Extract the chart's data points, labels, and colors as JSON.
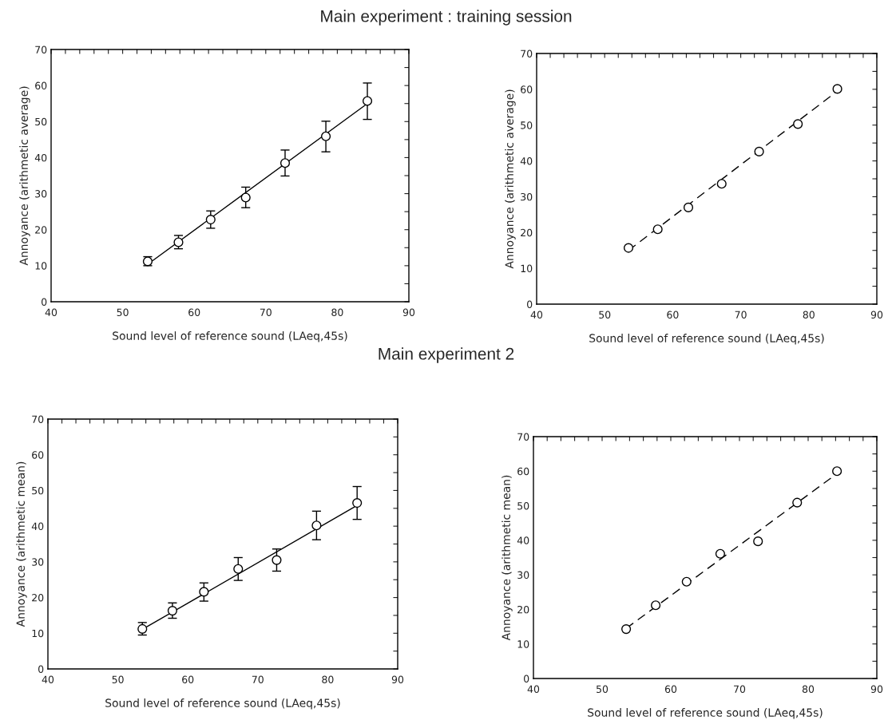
{
  "chart_data": [
    {
      "type": "scatter",
      "title": "Main experiment : training session",
      "xlabel": "Sound level of reference sound (LAeq,45s)",
      "ylabel": "Annoyance (arithmetic average)",
      "marker": "circle",
      "grid": false,
      "xlim": [
        40,
        90
      ],
      "ylim": [
        0,
        70
      ],
      "xticks": [
        40,
        {
          "value": 42,
          "label": null
        },
        {
          "value": 44,
          "label": null
        },
        {
          "value": 46,
          "label": null
        },
        {
          "value": 48,
          "label": null
        },
        50,
        {
          "value": 52,
          "label": null
        },
        {
          "value": 54,
          "label": null
        },
        {
          "value": 56,
          "label": null
        },
        {
          "value": 58,
          "label": null
        },
        60,
        {
          "value": 62,
          "label": null
        },
        {
          "value": 64,
          "label": null
        },
        {
          "value": 66,
          "label": null
        },
        {
          "value": 68,
          "label": null
        },
        70,
        {
          "value": 72,
          "label": null
        },
        {
          "value": 74,
          "label": null
        },
        {
          "value": 76,
          "label": null
        },
        {
          "value": 78,
          "label": null
        },
        80,
        {
          "value": 82,
          "label": null
        },
        {
          "value": 84,
          "label": null
        },
        {
          "value": 86,
          "label": null
        },
        {
          "value": 88,
          "label": null
        },
        90
      ],
      "yticks": [
        0,
        {
          "value": 5,
          "label": null
        },
        10,
        {
          "value": 15,
          "label": null
        },
        20,
        {
          "value": 25,
          "label": null
        },
        30,
        {
          "value": 35,
          "label": null
        },
        40,
        {
          "value": 45,
          "label": null
        },
        50,
        {
          "value": 55,
          "label": null
        },
        60,
        {
          "value": 65,
          "label": null
        },
        70
      ],
      "series": [
        {
          "color": "#000000",
          "x": [
            53.5,
            57.8,
            62.3,
            67.2,
            72.7,
            78.4,
            84.2
          ],
          "values": [
            11.2,
            16.5,
            22.8,
            28.9,
            38.5,
            45.9,
            55.7
          ],
          "errors": [
            [
              10.0,
              12.5
            ],
            [
              14.7,
              18.4
            ],
            [
              20.4,
              25.2
            ],
            [
              26.1,
              31.8
            ],
            [
              34.9,
              42.1
            ],
            [
              41.6,
              50.1
            ],
            [
              50.6,
              60.7
            ]
          ]
        },
        {
          "type": "line",
          "marker": "none",
          "color": "#000000",
          "line_style": "solid",
          "x": [
            53.7,
            84.2
          ],
          "values": [
            10.7,
            55.0
          ]
        }
      ]
    },
    {
      "type": "scatter",
      "xlabel": "Sound level of reference sound (LAeq,45s)",
      "ylabel": "Annoyance (arithmetic average)",
      "marker": "circle",
      "grid": false,
      "xlim": [
        40,
        90
      ],
      "ylim": [
        0,
        70
      ],
      "xticks": [
        40,
        {
          "value": 42,
          "label": null
        },
        {
          "value": 44,
          "label": null
        },
        {
          "value": 46,
          "label": null
        },
        {
          "value": 48,
          "label": null
        },
        50,
        {
          "value": 52,
          "label": null
        },
        {
          "value": 54,
          "label": null
        },
        {
          "value": 56,
          "label": null
        },
        {
          "value": 58,
          "label": null
        },
        60,
        {
          "value": 62,
          "label": null
        },
        {
          "value": 64,
          "label": null
        },
        {
          "value": 66,
          "label": null
        },
        {
          "value": 68,
          "label": null
        },
        70,
        {
          "value": 72,
          "label": null
        },
        {
          "value": 74,
          "label": null
        },
        {
          "value": 76,
          "label": null
        },
        {
          "value": 78,
          "label": null
        },
        80,
        {
          "value": 82,
          "label": null
        },
        {
          "value": 84,
          "label": null
        },
        {
          "value": 86,
          "label": null
        },
        {
          "value": 88,
          "label": null
        },
        90
      ],
      "yticks": [
        0,
        {
          "value": 5,
          "label": null
        },
        10,
        {
          "value": 15,
          "label": null
        },
        20,
        {
          "value": 25,
          "label": null
        },
        30,
        {
          "value": 35,
          "label": null
        },
        40,
        {
          "value": 45,
          "label": null
        },
        50,
        {
          "value": 55,
          "label": null
        },
        60,
        {
          "value": 65,
          "label": null
        },
        70
      ],
      "series": [
        {
          "color": "#000000",
          "x": [
            53.5,
            57.8,
            62.3,
            67.2,
            72.7,
            78.4,
            84.2
          ],
          "values": [
            15.7,
            20.9,
            27.0,
            33.6,
            42.6,
            50.3,
            60.1
          ]
        },
        {
          "type": "line",
          "marker": "none",
          "color": "#000000",
          "line_style": "dashed",
          "x": [
            53.5,
            84.2
          ],
          "values": [
            15.0,
            59.5
          ]
        }
      ]
    },
    {
      "type": "scatter",
      "title": "Main experiment 2",
      "xlabel": "Sound level of reference sound (LAeq,45s)",
      "ylabel": "Annoyance (arithmetic mean)",
      "marker": "circle",
      "grid": false,
      "xlim": [
        40,
        90
      ],
      "ylim": [
        0,
        70
      ],
      "xticks": [
        40,
        {
          "value": 42,
          "label": null
        },
        {
          "value": 44,
          "label": null
        },
        {
          "value": 46,
          "label": null
        },
        {
          "value": 48,
          "label": null
        },
        50,
        {
          "value": 52,
          "label": null
        },
        {
          "value": 54,
          "label": null
        },
        {
          "value": 56,
          "label": null
        },
        {
          "value": 58,
          "label": null
        },
        60,
        {
          "value": 62,
          "label": null
        },
        {
          "value": 64,
          "label": null
        },
        {
          "value": 66,
          "label": null
        },
        {
          "value": 68,
          "label": null
        },
        70,
        {
          "value": 72,
          "label": null
        },
        {
          "value": 74,
          "label": null
        },
        {
          "value": 76,
          "label": null
        },
        {
          "value": 78,
          "label": null
        },
        80,
        {
          "value": 82,
          "label": null
        },
        {
          "value": 84,
          "label": null
        },
        {
          "value": 86,
          "label": null
        },
        {
          "value": 88,
          "label": null
        },
        90
      ],
      "yticks": [
        0,
        {
          "value": 5,
          "label": null
        },
        10,
        {
          "value": 15,
          "label": null
        },
        20,
        {
          "value": 25,
          "label": null
        },
        30,
        {
          "value": 35,
          "label": null
        },
        40,
        {
          "value": 45,
          "label": null
        },
        50,
        {
          "value": 55,
          "label": null
        },
        60,
        {
          "value": 65,
          "label": null
        },
        70
      ],
      "series": [
        {
          "color": "#000000",
          "x": [
            53.5,
            57.8,
            62.3,
            67.2,
            72.7,
            78.4,
            84.2
          ],
          "values": [
            11.2,
            16.3,
            21.6,
            28.0,
            30.5,
            40.2,
            46.5
          ],
          "errors": [
            [
              9.5,
              13.0
            ],
            [
              14.2,
              18.5
            ],
            [
              19.0,
              24.1
            ],
            [
              24.8,
              31.2
            ],
            [
              27.4,
              33.6
            ],
            [
              36.2,
              44.2
            ],
            [
              41.9,
              51.1
            ]
          ]
        },
        {
          "type": "line",
          "marker": "none",
          "color": "#000000",
          "line_style": "solid",
          "x": [
            53.7,
            84.2
          ],
          "values": [
            11.3,
            45.8
          ]
        }
      ]
    },
    {
      "type": "scatter",
      "xlabel": "Sound level of reference sound (LAeq,45s)",
      "ylabel": "Annoyance (arithmetic mean)",
      "marker": "circle",
      "grid": false,
      "xlim": [
        40,
        90
      ],
      "ylim": [
        0,
        70
      ],
      "xticks": [
        40,
        {
          "value": 42,
          "label": null
        },
        {
          "value": 44,
          "label": null
        },
        {
          "value": 46,
          "label": null
        },
        {
          "value": 48,
          "label": null
        },
        50,
        {
          "value": 52,
          "label": null
        },
        {
          "value": 54,
          "label": null
        },
        {
          "value": 56,
          "label": null
        },
        {
          "value": 58,
          "label": null
        },
        60,
        {
          "value": 62,
          "label": null
        },
        {
          "value": 64,
          "label": null
        },
        {
          "value": 66,
          "label": null
        },
        {
          "value": 68,
          "label": null
        },
        70,
        {
          "value": 72,
          "label": null
        },
        {
          "value": 74,
          "label": null
        },
        {
          "value": 76,
          "label": null
        },
        {
          "value": 78,
          "label": null
        },
        80,
        {
          "value": 82,
          "label": null
        },
        {
          "value": 84,
          "label": null
        },
        {
          "value": 86,
          "label": null
        },
        {
          "value": 88,
          "label": null
        },
        90
      ],
      "yticks": [
        0,
        {
          "value": 5,
          "label": null
        },
        10,
        {
          "value": 15,
          "label": null
        },
        20,
        {
          "value": 25,
          "label": null
        },
        30,
        {
          "value": 35,
          "label": null
        },
        40,
        {
          "value": 45,
          "label": null
        },
        50,
        {
          "value": 55,
          "label": null
        },
        60,
        {
          "value": 65,
          "label": null
        },
        70
      ],
      "series": [
        {
          "color": "#000000",
          "x": [
            53.5,
            57.8,
            62.3,
            67.2,
            72.7,
            78.4,
            84.2
          ],
          "values": [
            14.3,
            21.2,
            28.0,
            36.1,
            39.7,
            50.9,
            60.0
          ]
        },
        {
          "type": "line",
          "marker": "none",
          "color": "#000000",
          "line_style": "dashed",
          "x": [
            53.5,
            84.2
          ],
          "values": [
            14.5,
            59.3
          ]
        }
      ]
    }
  ]
}
